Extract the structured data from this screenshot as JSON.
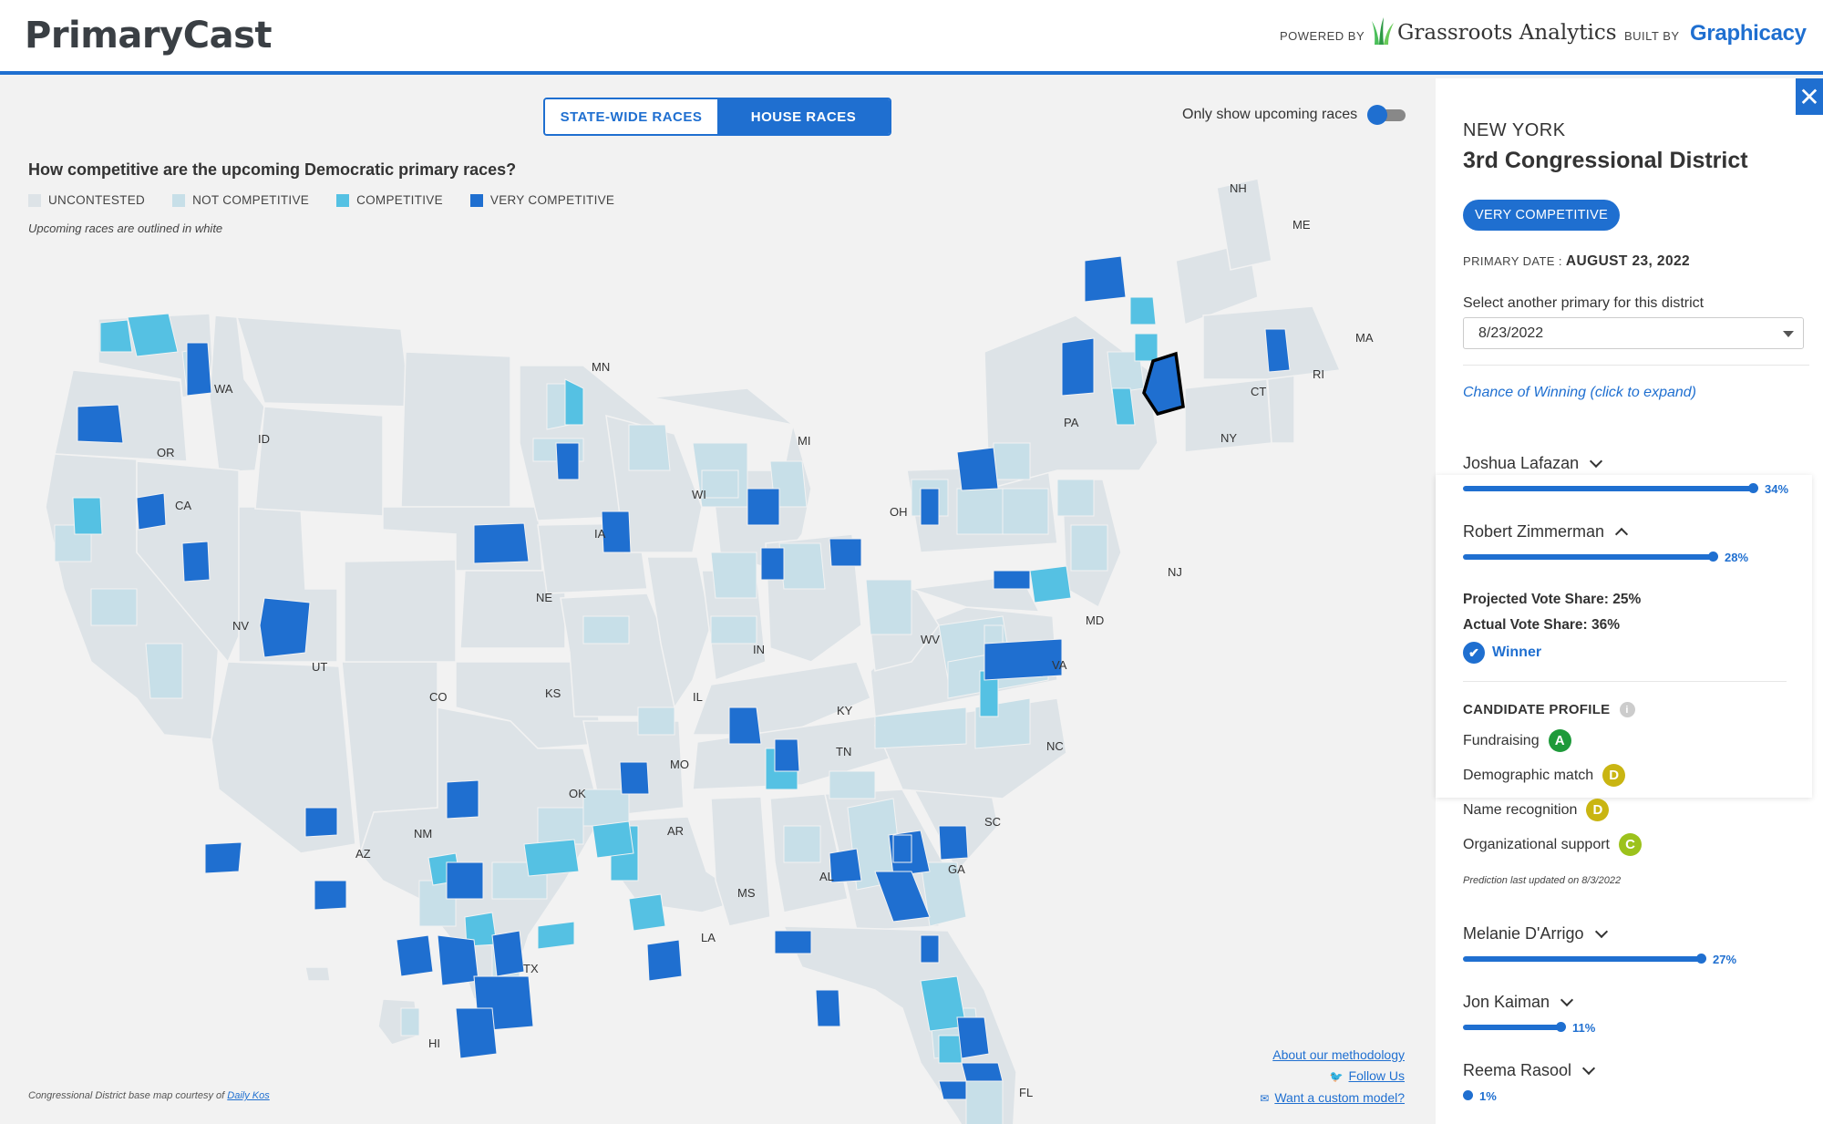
{
  "header": {
    "app_title": "PrimaryCast",
    "powered_by": "POWERED BY",
    "powered_brand": "Grassroots Analytics",
    "built_by": "BUILT BY",
    "built_brand": "Graphicacy"
  },
  "controls": {
    "tabs": [
      {
        "label": "STATE-WIDE RACES",
        "active": false
      },
      {
        "label": "HOUSE RACES",
        "active": true
      }
    ],
    "upcoming_toggle_label": "Only show upcoming races",
    "upcoming_toggle_on": true
  },
  "map": {
    "question": "How competitive are the upcoming Democratic primary races?",
    "legend": [
      {
        "label": "UNCONTESTED",
        "color": "#dde3e7"
      },
      {
        "label": "NOT COMPETITIVE",
        "color": "#c7dfe8"
      },
      {
        "label": "COMPETITIVE",
        "color": "#55c1e3"
      },
      {
        "label": "VERY COMPETITIVE",
        "color": "#1f6fd0"
      }
    ],
    "note": "Upcoming races are outlined in white",
    "state_labels": [
      "WA",
      "OR",
      "ID",
      "CA",
      "NV",
      "UT",
      "AZ",
      "NM",
      "CO",
      "MN",
      "WI",
      "IA",
      "NE",
      "KS",
      "OK",
      "TX",
      "MO",
      "AR",
      "LA",
      "IL",
      "MI",
      "IN",
      "OH",
      "KY",
      "TN",
      "MS",
      "AL",
      "GA",
      "FL",
      "SC",
      "NC",
      "VA",
      "WV",
      "MD",
      "PA",
      "NY",
      "NJ",
      "CT",
      "RI",
      "MA",
      "ME",
      "NH",
      "HI"
    ],
    "credit_text": "Congressional District base map courtesy of",
    "credit_link": "Daily Kos"
  },
  "footer_links": {
    "methodology": "About our methodology",
    "follow": "Follow Us",
    "custom": "Want a custom model?"
  },
  "sidebar": {
    "state": "NEW YORK",
    "district": "3rd Congressional District",
    "badge": "VERY COMPETITIVE",
    "primary_date_label": "PRIMARY DATE :",
    "primary_date": "AUGUST 23, 2022",
    "select_label": "Select another primary for this district",
    "select_value": "8/23/2022",
    "chance_link": "Chance of Winning (click to expand)",
    "candidates": [
      {
        "name": "Joshua Lafazan",
        "pct": 34,
        "pct_label": "34%"
      },
      {
        "name": "Robert Zimmerman",
        "pct": 28,
        "pct_label": "28%"
      },
      {
        "name": "Melanie D'Arrigo",
        "pct": 27,
        "pct_label": "27%"
      },
      {
        "name": "Jon Kaiman",
        "pct": 11,
        "pct_label": "11%"
      },
      {
        "name": "Reema Rasool",
        "pct": 1,
        "pct_label": "1%"
      }
    ],
    "expanded": {
      "projected": "Projected Vote Share: 25%",
      "actual": "Actual Vote Share: 36%",
      "winner": "Winner",
      "profile_heading": "CANDIDATE PROFILE",
      "grades": [
        {
          "label": "Fundraising",
          "grade": "A",
          "color": "#1e9a3a"
        },
        {
          "label": "Demographic match",
          "grade": "D",
          "color": "#c9b512"
        },
        {
          "label": "Name recognition",
          "grade": "D",
          "color": "#c9b512"
        },
        {
          "label": "Organizational support",
          "grade": "C",
          "color": "#9cc21c"
        }
      ],
      "updated": "Prediction last updated on 8/3/2022"
    }
  }
}
